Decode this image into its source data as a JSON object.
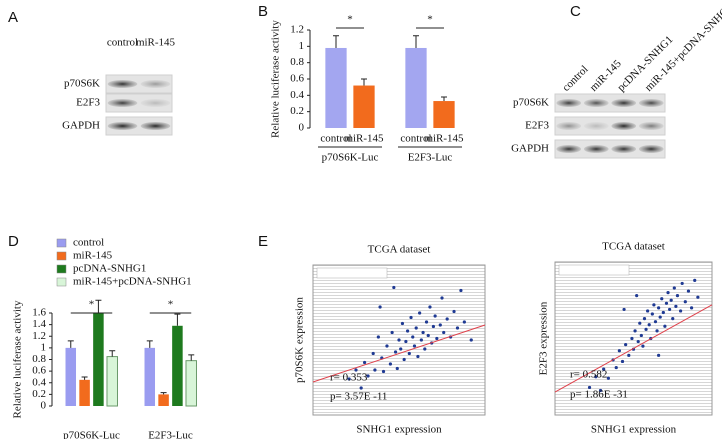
{
  "panels": [
    "A",
    "B",
    "C",
    "D",
    "E"
  ],
  "blots": [
    {
      "columns": [
        "control",
        "miR-145"
      ],
      "rows": [
        "p70S6K",
        "E2F3",
        "GAPDH"
      ]
    },
    {
      "columns": [
        "control",
        "miR-145",
        "pcDNA-SNHG1",
        "miR-145+pcDNA-SNHG1"
      ],
      "rows": [
        "p70S6K",
        "E2F3",
        "GAPDH"
      ]
    }
  ],
  "chart_data": [
    {
      "type": "bar",
      "y_label": "Relative luciferase activity",
      "categories": [
        "p70S6K-Luc",
        "E2F3-Luc"
      ],
      "series": [
        {
          "name": "control",
          "color": "#a3a6f0",
          "values": [
            0.98,
            0.98
          ],
          "errors": [
            0.15,
            0.15
          ]
        },
        {
          "name": "miR-145",
          "color": "#f26b1d",
          "values": [
            0.52,
            0.33
          ],
          "errors": [
            0.08,
            0.05
          ]
        }
      ],
      "ylim": [
        0,
        1.2
      ],
      "yticks": [
        0,
        0.2,
        0.4,
        0.6,
        0.8,
        1,
        1.2
      ],
      "annotations": [
        "*",
        "*"
      ],
      "legend": false
    },
    {
      "type": "bar",
      "y_label": "Relative luciferase activity",
      "categories": [
        "p70S6K-Luc",
        "E2F3-Luc"
      ],
      "series": [
        {
          "name": "control",
          "color": "#9a9cf0",
          "values": [
            1.0,
            1.0
          ],
          "errors": [
            0.12,
            0.12
          ]
        },
        {
          "name": "miR-145",
          "color": "#f26b1d",
          "values": [
            0.45,
            0.2
          ],
          "errors": [
            0.05,
            0.03
          ]
        },
        {
          "name": "pcDNA-SNHG1",
          "color": "#1e7a1e",
          "values": [
            1.6,
            1.38
          ],
          "errors": [
            0.22,
            0.2
          ]
        },
        {
          "name": "miR-145+pcDNA-SNHG1",
          "color": "#d8f5d8",
          "values": [
            0.85,
            0.78
          ],
          "errors": [
            0.1,
            0.1
          ]
        }
      ],
      "ylim": [
        0,
        1.6
      ],
      "yticks": [
        0,
        0.2,
        0.4,
        0.6,
        0.8,
        1,
        1.2,
        1.4,
        1.6
      ],
      "annotations": [
        "*",
        "*"
      ],
      "legend": true
    },
    {
      "type": "scatter",
      "title": "TCGA dataset",
      "x_label": "SNHG1 expression",
      "y_label": "p70S6K expression",
      "color": "#1f3a93",
      "fit_color": "#e0404a",
      "x": [
        2.1,
        2.5,
        2.8,
        3.0,
        3.2,
        3.5,
        3.6,
        3.8,
        4.0,
        4.1,
        4.3,
        4.5,
        4.6,
        4.8,
        4.9,
        5.0,
        5.1,
        5.2,
        5.3,
        5.4,
        5.5,
        5.6,
        5.7,
        5.8,
        5.9,
        6.0,
        6.1,
        6.2,
        6.3,
        6.4,
        6.5,
        6.6,
        6.7,
        6.8,
        6.9,
        7.0,
        7.1,
        7.2,
        7.4,
        7.5,
        7.6,
        7.8,
        8.0,
        8.2,
        8.4,
        8.6,
        8.8,
        9.2,
        4.7,
        3.9
      ],
      "y": [
        2.4,
        3.0,
        1.8,
        3.5,
        2.6,
        4.1,
        3.0,
        5.2,
        3.8,
        2.9,
        4.6,
        3.4,
        5.5,
        4.2,
        3.1,
        5.0,
        4.4,
        6.1,
        3.7,
        4.9,
        5.6,
        4.1,
        6.5,
        5.2,
        4.6,
        5.8,
        3.9,
        6.8,
        5.0,
        5.5,
        4.4,
        6.2,
        5.3,
        7.2,
        4.8,
        5.9,
        6.6,
        5.1,
        6.0,
        7.8,
        5.5,
        6.4,
        5.2,
        6.9,
        5.8,
        8.3,
        6.2,
        5.0,
        8.5,
        7.2
      ],
      "fit_x": [
        0,
        10
      ],
      "fit_y": [
        2.2,
        6.0
      ],
      "xlim": [
        0,
        10
      ],
      "ylim": [
        0,
        10
      ],
      "annotations": [
        "r= 0.353",
        "p= 3.57E -11"
      ]
    },
    {
      "type": "scatter",
      "title": "TCGA dataset",
      "x_label": "SNHG1 expression",
      "y_label": "E2F3 expression",
      "color": "#1f3a93",
      "fit_color": "#e0404a",
      "x": [
        2.2,
        2.6,
        2.9,
        3.1,
        3.4,
        3.7,
        3.9,
        4.1,
        4.3,
        4.5,
        4.7,
        4.9,
        5.0,
        5.1,
        5.3,
        5.4,
        5.5,
        5.6,
        5.7,
        5.8,
        5.9,
        6.0,
        6.1,
        6.2,
        6.3,
        6.4,
        6.5,
        6.6,
        6.7,
        6.8,
        6.9,
        7.0,
        7.1,
        7.2,
        7.3,
        7.4,
        7.5,
        7.6,
        7.7,
        7.8,
        8.0,
        8.1,
        8.3,
        8.5,
        8.7,
        8.9,
        9.1,
        4.4,
        6.6,
        5.2
      ],
      "y": [
        1.8,
        2.5,
        1.6,
        3.0,
        2.4,
        3.6,
        3.1,
        4.2,
        3.5,
        4.6,
        3.9,
        5.0,
        4.3,
        5.5,
        4.8,
        6.0,
        5.2,
        4.5,
        6.3,
        5.6,
        6.8,
        5.9,
        5.0,
        6.6,
        7.2,
        6.1,
        5.5,
        7.0,
        6.4,
        7.6,
        6.7,
        5.8,
        7.3,
        8.0,
        6.9,
        7.5,
        6.3,
        8.3,
        7.1,
        7.8,
        6.8,
        8.6,
        7.4,
        8.1,
        7.0,
        8.8,
        7.7,
        6.9,
        3.9,
        7.8
      ],
      "fit_x": [
        0,
        10
      ],
      "fit_y": [
        1.5,
        7.2
      ],
      "xlim": [
        0,
        10
      ],
      "ylim": [
        0,
        10
      ],
      "annotations": [
        "r= 0.582",
        "p= 1.86E -31"
      ]
    }
  ]
}
